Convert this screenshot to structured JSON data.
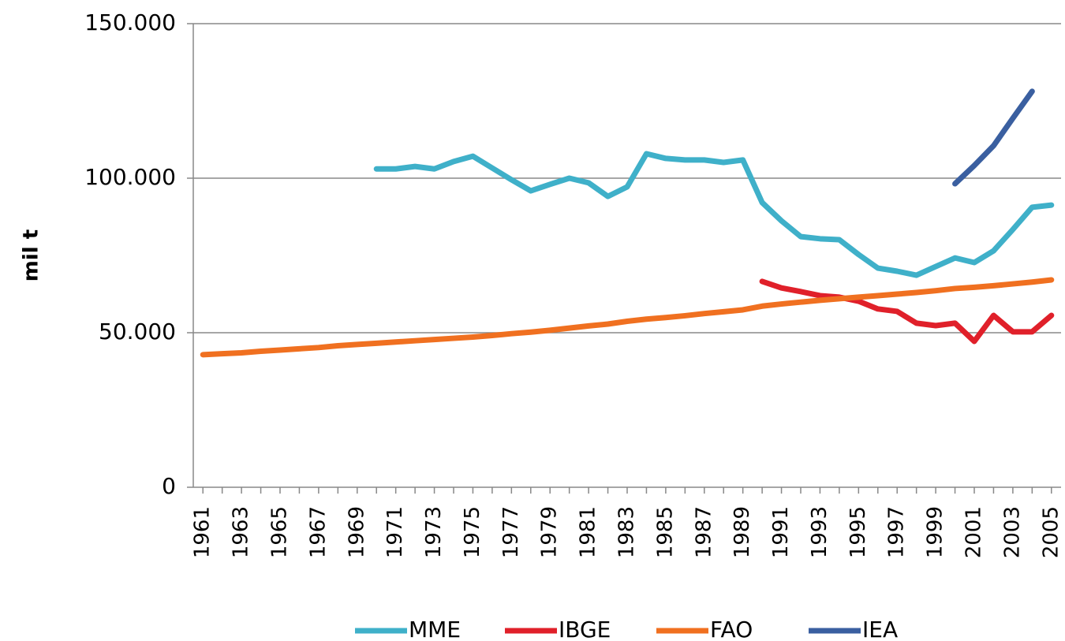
{
  "chart_data": {
    "type": "line",
    "y_label": "mil t",
    "x": [
      1961,
      1962,
      1963,
      1964,
      1965,
      1966,
      1967,
      1968,
      1969,
      1970,
      1971,
      1972,
      1973,
      1974,
      1975,
      1976,
      1977,
      1978,
      1979,
      1980,
      1981,
      1982,
      1983,
      1984,
      1985,
      1986,
      1987,
      1988,
      1989,
      1990,
      1991,
      1992,
      1993,
      1994,
      1995,
      1996,
      1997,
      1998,
      1999,
      2000,
      2001,
      2002,
      2003,
      2004,
      2005
    ],
    "xlim": [
      1960.5,
      2005.5
    ],
    "xticks": [
      1961,
      1963,
      1965,
      1967,
      1969,
      1971,
      1973,
      1975,
      1977,
      1979,
      1981,
      1983,
      1985,
      1987,
      1989,
      1991,
      1993,
      1995,
      1997,
      1999,
      2001,
      2003,
      2005
    ],
    "ylim": [
      0,
      150000
    ],
    "yticks": [
      {
        "value": 0,
        "label": "0"
      },
      {
        "value": 50000,
        "label": "50.000"
      },
      {
        "value": 100000,
        "label": "100.000"
      },
      {
        "value": 150000,
        "label": "150.000"
      }
    ],
    "grid": true,
    "legend": "bottom",
    "series": [
      {
        "name": "MME",
        "color": "#3fb0c9",
        "values": [
          null,
          null,
          null,
          null,
          null,
          null,
          null,
          null,
          null,
          103000,
          103000,
          103800,
          103000,
          105400,
          107100,
          103300,
          99500,
          95900,
          98000,
          100000,
          98500,
          94100,
          97200,
          107900,
          106400,
          105900,
          105900,
          105100,
          105900,
          92100,
          86200,
          81100,
          80400,
          80100,
          75300,
          70900,
          69900,
          68600,
          71400,
          74200,
          72700,
          76500,
          83400,
          90600,
          91300
        ]
      },
      {
        "name": "IBGE",
        "color": "#e0202a",
        "values": [
          null,
          null,
          null,
          null,
          null,
          null,
          null,
          null,
          null,
          null,
          null,
          null,
          null,
          null,
          null,
          null,
          null,
          null,
          null,
          null,
          null,
          null,
          null,
          null,
          null,
          null,
          null,
          null,
          null,
          66600,
          64500,
          63300,
          62000,
          61500,
          60200,
          57700,
          56900,
          53100,
          52300,
          53100,
          47200,
          55600,
          50300,
          50300,
          55600
        ]
      },
      {
        "name": "FAO",
        "color": "#f07020",
        "values": [
          42900,
          43200,
          43500,
          44000,
          44400,
          44800,
          45200,
          45800,
          46200,
          46600,
          47000,
          47400,
          47800,
          48200,
          48600,
          49100,
          49700,
          50200,
          50800,
          51500,
          52200,
          52800,
          53700,
          54400,
          54900,
          55500,
          56200,
          56800,
          57400,
          58600,
          59300,
          59900,
          60500,
          61000,
          61500,
          62000,
          62500,
          63000,
          63600,
          64300,
          64700,
          65200,
          65800,
          66400,
          67100
        ]
      },
      {
        "name": "IEA",
        "color": "#3a5fa0",
        "values": [
          null,
          null,
          null,
          null,
          null,
          null,
          null,
          null,
          null,
          null,
          null,
          null,
          null,
          null,
          null,
          null,
          null,
          null,
          null,
          null,
          null,
          null,
          null,
          null,
          null,
          null,
          null,
          null,
          null,
          null,
          null,
          null,
          null,
          null,
          null,
          null,
          null,
          null,
          null,
          98200,
          104100,
          110500,
          119400,
          128100,
          null
        ]
      }
    ]
  }
}
